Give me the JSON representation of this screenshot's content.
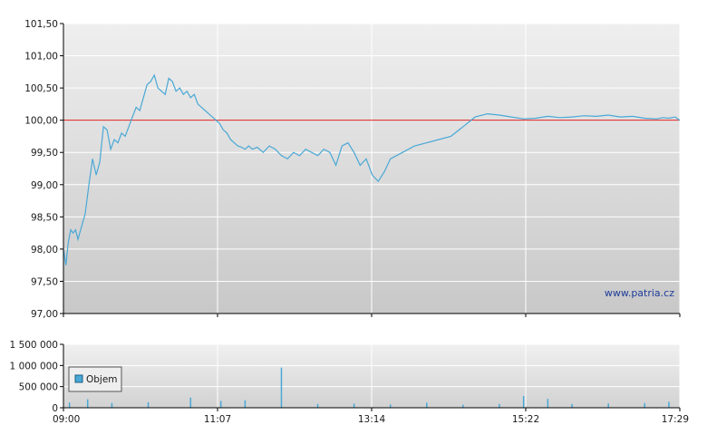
{
  "chart_data": [
    {
      "type": "line",
      "name": "price",
      "x_ticks": [
        "09:00",
        "11:07",
        "13:14",
        "15:22",
        "17:29"
      ],
      "y_ticks": [
        "97,00",
        "97,50",
        "98,00",
        "98,50",
        "99,00",
        "99,50",
        "100,00",
        "100,50",
        "101,00",
        "101,50"
      ],
      "ylim": [
        97.0,
        101.5
      ],
      "xlim": [
        "09:00",
        "17:29"
      ],
      "reference_line": 100.0,
      "grid": true,
      "watermark": "www.patria.cz",
      "colors": {
        "series": "#49a8d6",
        "reference": "#e02020",
        "grid": "#ffffff",
        "axis": "#000000"
      },
      "series": [
        {
          "x": [
            "09:00",
            "09:02",
            "09:04",
            "09:06",
            "09:08",
            "09:10",
            "09:12",
            "09:15",
            "09:18",
            "09:21",
            "09:24",
            "09:27",
            "09:30",
            "09:33",
            "09:36",
            "09:39",
            "09:42",
            "09:45",
            "09:48",
            "09:51",
            "09:54",
            "09:57",
            "10:00",
            "10:03",
            "10:06",
            "10:09",
            "10:12",
            "10:15",
            "10:18",
            "10:21",
            "10:24",
            "10:27",
            "10:30",
            "10:33",
            "10:36",
            "10:39",
            "10:42",
            "10:45",
            "10:48",
            "10:51",
            "10:54",
            "10:57",
            "11:00",
            "11:03",
            "11:06",
            "11:09",
            "11:12",
            "11:15",
            "11:18",
            "11:21",
            "11:24",
            "11:27",
            "11:30",
            "11:33",
            "11:36",
            "11:40",
            "11:45",
            "11:50",
            "11:55",
            "12:00",
            "12:05",
            "12:10",
            "12:15",
            "12:20",
            "12:25",
            "12:30",
            "12:35",
            "12:40",
            "12:45",
            "12:50",
            "12:55",
            "13:00",
            "13:05",
            "13:10",
            "13:15",
            "13:20",
            "13:25",
            "13:30",
            "13:40",
            "13:50",
            "14:00",
            "14:10",
            "14:20",
            "14:30",
            "14:40",
            "14:50",
            "15:00",
            "15:10",
            "15:20",
            "15:30",
            "15:40",
            "15:50",
            "16:00",
            "16:10",
            "16:20",
            "16:30",
            "16:40",
            "16:50",
            "17:00",
            "17:10",
            "17:15",
            "17:20",
            "17:25",
            "17:29"
          ],
          "y": [
            98.0,
            97.75,
            98.1,
            98.3,
            98.25,
            98.3,
            98.15,
            98.35,
            98.55,
            99.0,
            99.4,
            99.15,
            99.35,
            99.9,
            99.85,
            99.55,
            99.7,
            99.65,
            99.8,
            99.75,
            99.9,
            100.05,
            100.2,
            100.15,
            100.35,
            100.55,
            100.6,
            100.7,
            100.5,
            100.45,
            100.4,
            100.65,
            100.6,
            100.45,
            100.5,
            100.4,
            100.45,
            100.35,
            100.4,
            100.25,
            100.2,
            100.15,
            100.1,
            100.05,
            100.0,
            99.95,
            99.85,
            99.8,
            99.7,
            99.65,
            99.6,
            99.58,
            99.55,
            99.6,
            99.55,
            99.58,
            99.5,
            99.6,
            99.55,
            99.45,
            99.4,
            99.5,
            99.45,
            99.55,
            99.5,
            99.45,
            99.55,
            99.5,
            99.3,
            99.6,
            99.65,
            99.5,
            99.3,
            99.4,
            99.15,
            99.05,
            99.2,
            99.4,
            99.5,
            99.6,
            99.65,
            99.7,
            99.75,
            99.9,
            100.05,
            100.1,
            100.08,
            100.05,
            100.02,
            100.03,
            100.06,
            100.04,
            100.05,
            100.07,
            100.06,
            100.08,
            100.05,
            100.06,
            100.03,
            100.02,
            100.04,
            100.03,
            100.05,
            100.0
          ]
        }
      ]
    },
    {
      "type": "bar",
      "name": "volume",
      "y_ticks": [
        "0",
        "500 000",
        "1 000 000",
        "1 500 000"
      ],
      "x_ticks": [
        "09:00",
        "11:07",
        "13:14",
        "15:22",
        "17:29"
      ],
      "ylim": [
        0,
        1500000
      ],
      "legend": {
        "label": "Objem",
        "position": "left"
      },
      "colors": {
        "bar": "#49a8d6"
      },
      "series": [
        {
          "name": "Objem",
          "x": [
            "09:05",
            "09:20",
            "09:40",
            "10:10",
            "10:45",
            "11:10",
            "11:30",
            "12:00",
            "12:30",
            "13:00",
            "13:30",
            "14:00",
            "14:30",
            "15:00",
            "15:20",
            "15:40",
            "16:00",
            "16:30",
            "17:00",
            "17:20"
          ],
          "values": [
            120000,
            200000,
            110000,
            130000,
            240000,
            160000,
            180000,
            950000,
            90000,
            100000,
            80000,
            120000,
            70000,
            90000,
            280000,
            210000,
            90000,
            100000,
            110000,
            140000
          ]
        }
      ]
    }
  ]
}
